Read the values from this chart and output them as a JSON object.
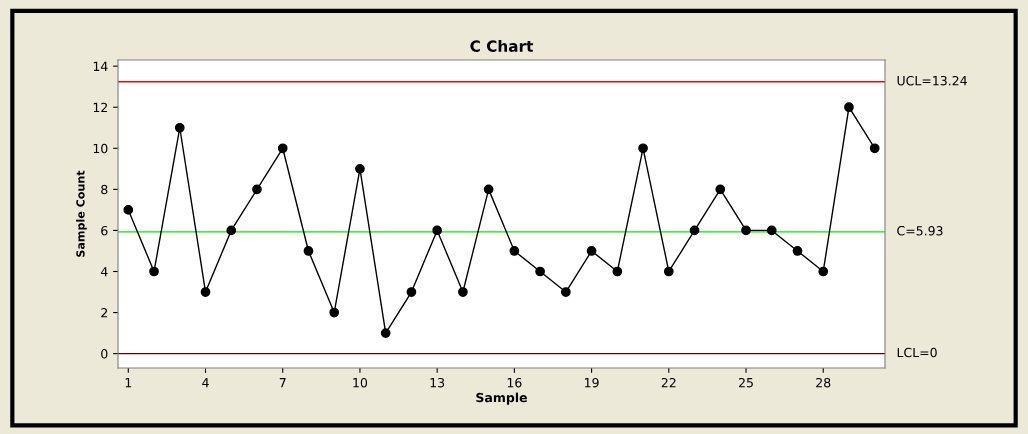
{
  "chart_data": {
    "type": "line",
    "title": "C Chart",
    "xlabel": "Sample",
    "ylabel": "Sample Count",
    "x": [
      1,
      2,
      3,
      4,
      5,
      6,
      7,
      8,
      9,
      10,
      11,
      12,
      13,
      14,
      15,
      16,
      17,
      18,
      19,
      20,
      21,
      22,
      23,
      24,
      25,
      26,
      27,
      28,
      29,
      30
    ],
    "series": [
      {
        "color": "#000000",
        "values": [
          7,
          4,
          11,
          3,
          6,
          8,
          10,
          5,
          2,
          9,
          1,
          3,
          6,
          3,
          8,
          5,
          4,
          3,
          5,
          4,
          10,
          4,
          6,
          8,
          6,
          6,
          5,
          4,
          12,
          10
        ]
      }
    ],
    "xlim": [
      0.6,
      30.4
    ],
    "xticks": [
      1,
      4,
      7,
      10,
      13,
      16,
      19,
      22,
      25,
      28
    ],
    "ylim": [
      -0.7,
      14.3
    ],
    "yticks": [
      0,
      2,
      4,
      6,
      8,
      10,
      12,
      14
    ],
    "ref_lines": [
      {
        "axis": "y",
        "value": 13.24,
        "label": "UCL=13.24",
        "color": "#ff0000"
      },
      {
        "axis": "y",
        "value": 5.93,
        "label": "C̄=5.93",
        "color": "#00ee00"
      },
      {
        "axis": "y",
        "value": 0,
        "label": "LCL=0",
        "color": "#660000"
      }
    ],
    "marker": "circle",
    "line_style": "solid",
    "grid": false,
    "legend": false
  }
}
